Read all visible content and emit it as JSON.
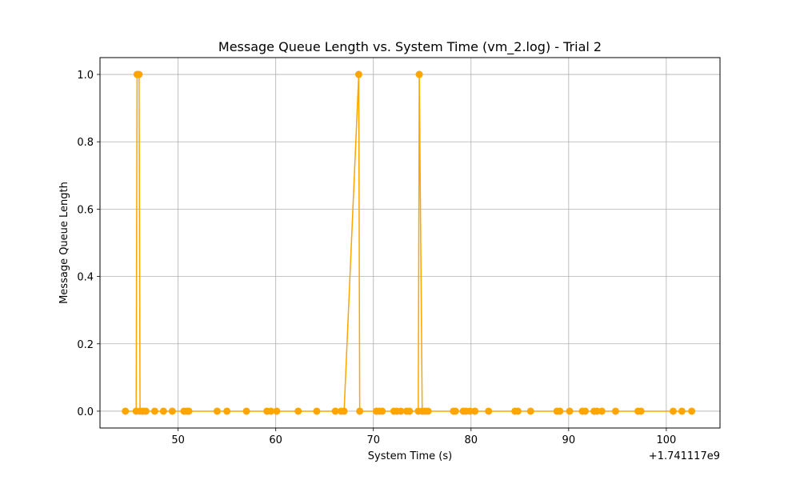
{
  "chart_data": {
    "type": "line",
    "title": "Message Queue Length vs. System Time (vm_2.log) - Trial 2",
    "xlabel": "System Time (s)",
    "ylabel": "Message Queue Length",
    "x_offset_label": "+1.741117e9",
    "xlim": [
      42,
      105.5
    ],
    "ylim": [
      -0.05,
      1.05
    ],
    "xticks": [
      50,
      60,
      70,
      80,
      90,
      100
    ],
    "yticks": [
      0.0,
      0.2,
      0.4,
      0.6,
      0.8,
      1.0
    ],
    "xtick_labels": [
      "50",
      "60",
      "70",
      "80",
      "90",
      "100"
    ],
    "ytick_labels": [
      "0.0",
      "0.2",
      "0.4",
      "0.6",
      "0.8",
      "1.0"
    ],
    "grid": true,
    "color": "#FFA500",
    "marker": "circle",
    "series": [
      {
        "x": [
          44.6,
          45.7,
          45.8,
          46.0,
          46.1,
          46.4,
          46.7,
          47.6,
          48.5,
          49.4,
          50.6,
          50.9,
          51.1,
          54.0,
          55.0,
          57.0,
          59.1,
          59.5,
          60.1,
          62.3,
          64.2,
          66.1,
          66.7,
          67.0,
          68.5,
          68.6,
          70.3,
          70.6,
          70.9,
          72.1,
          72.4,
          72.8,
          73.4,
          73.7,
          74.6,
          74.7,
          75.0,
          75.3,
          75.6,
          78.2,
          78.4,
          79.2,
          79.5,
          79.9,
          80.4,
          81.8,
          84.5,
          84.8,
          86.1,
          88.8,
          89.1,
          90.1,
          91.4,
          91.7,
          92.6,
          92.9,
          93.4,
          94.8,
          97.1,
          97.4,
          100.7,
          101.6,
          102.6
        ],
        "y": [
          0,
          0,
          1,
          1,
          0,
          0,
          0,
          0,
          0,
          0,
          0,
          0,
          0,
          0,
          0,
          0,
          0,
          0,
          0,
          0,
          0,
          0,
          0,
          0,
          1,
          0,
          0,
          0,
          0,
          0,
          0,
          0,
          0,
          0,
          0,
          1,
          0,
          0,
          0,
          0,
          0,
          0,
          0,
          0,
          0,
          0,
          0,
          0,
          0,
          0,
          0,
          0,
          0,
          0,
          0,
          0,
          0,
          0,
          0,
          0,
          0,
          0,
          0
        ]
      }
    ]
  }
}
